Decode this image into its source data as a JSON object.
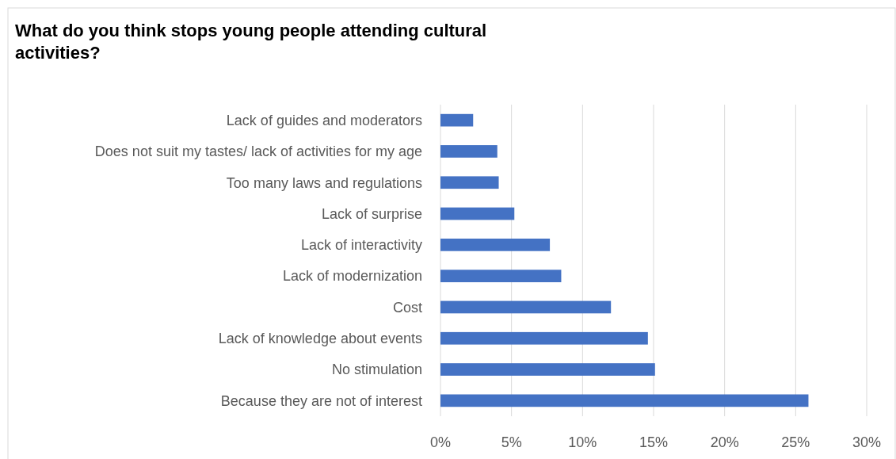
{
  "chart_data": {
    "type": "bar",
    "orientation": "horizontal",
    "title": "What do you think stops young people attending cultural activities?",
    "categories": [
      "Lack of guides and moderators",
      "Does not suit my tastes/ lack of activities for my age",
      "Too many laws and regulations",
      "Lack of surprise",
      "Lack of interactivity",
      "Lack of modernization",
      "Cost",
      "Lack of knowledge about events",
      "No stimulation",
      "Because they are not of interest"
    ],
    "values": [
      2.3,
      4.0,
      4.1,
      5.2,
      7.7,
      8.5,
      12.0,
      14.6,
      15.1,
      25.9
    ],
    "color": "#4472c4",
    "xlim": [
      0,
      30
    ],
    "xticks": [
      {
        "value": 0,
        "label": "0%"
      },
      {
        "value": 5,
        "label": "5%"
      },
      {
        "value": 10,
        "label": "10%"
      },
      {
        "value": 15,
        "label": "15%"
      },
      {
        "value": 20,
        "label": "20%"
      },
      {
        "value": 25,
        "label": "25%"
      },
      {
        "value": 30,
        "label": "30%"
      }
    ],
    "grid": "x"
  }
}
